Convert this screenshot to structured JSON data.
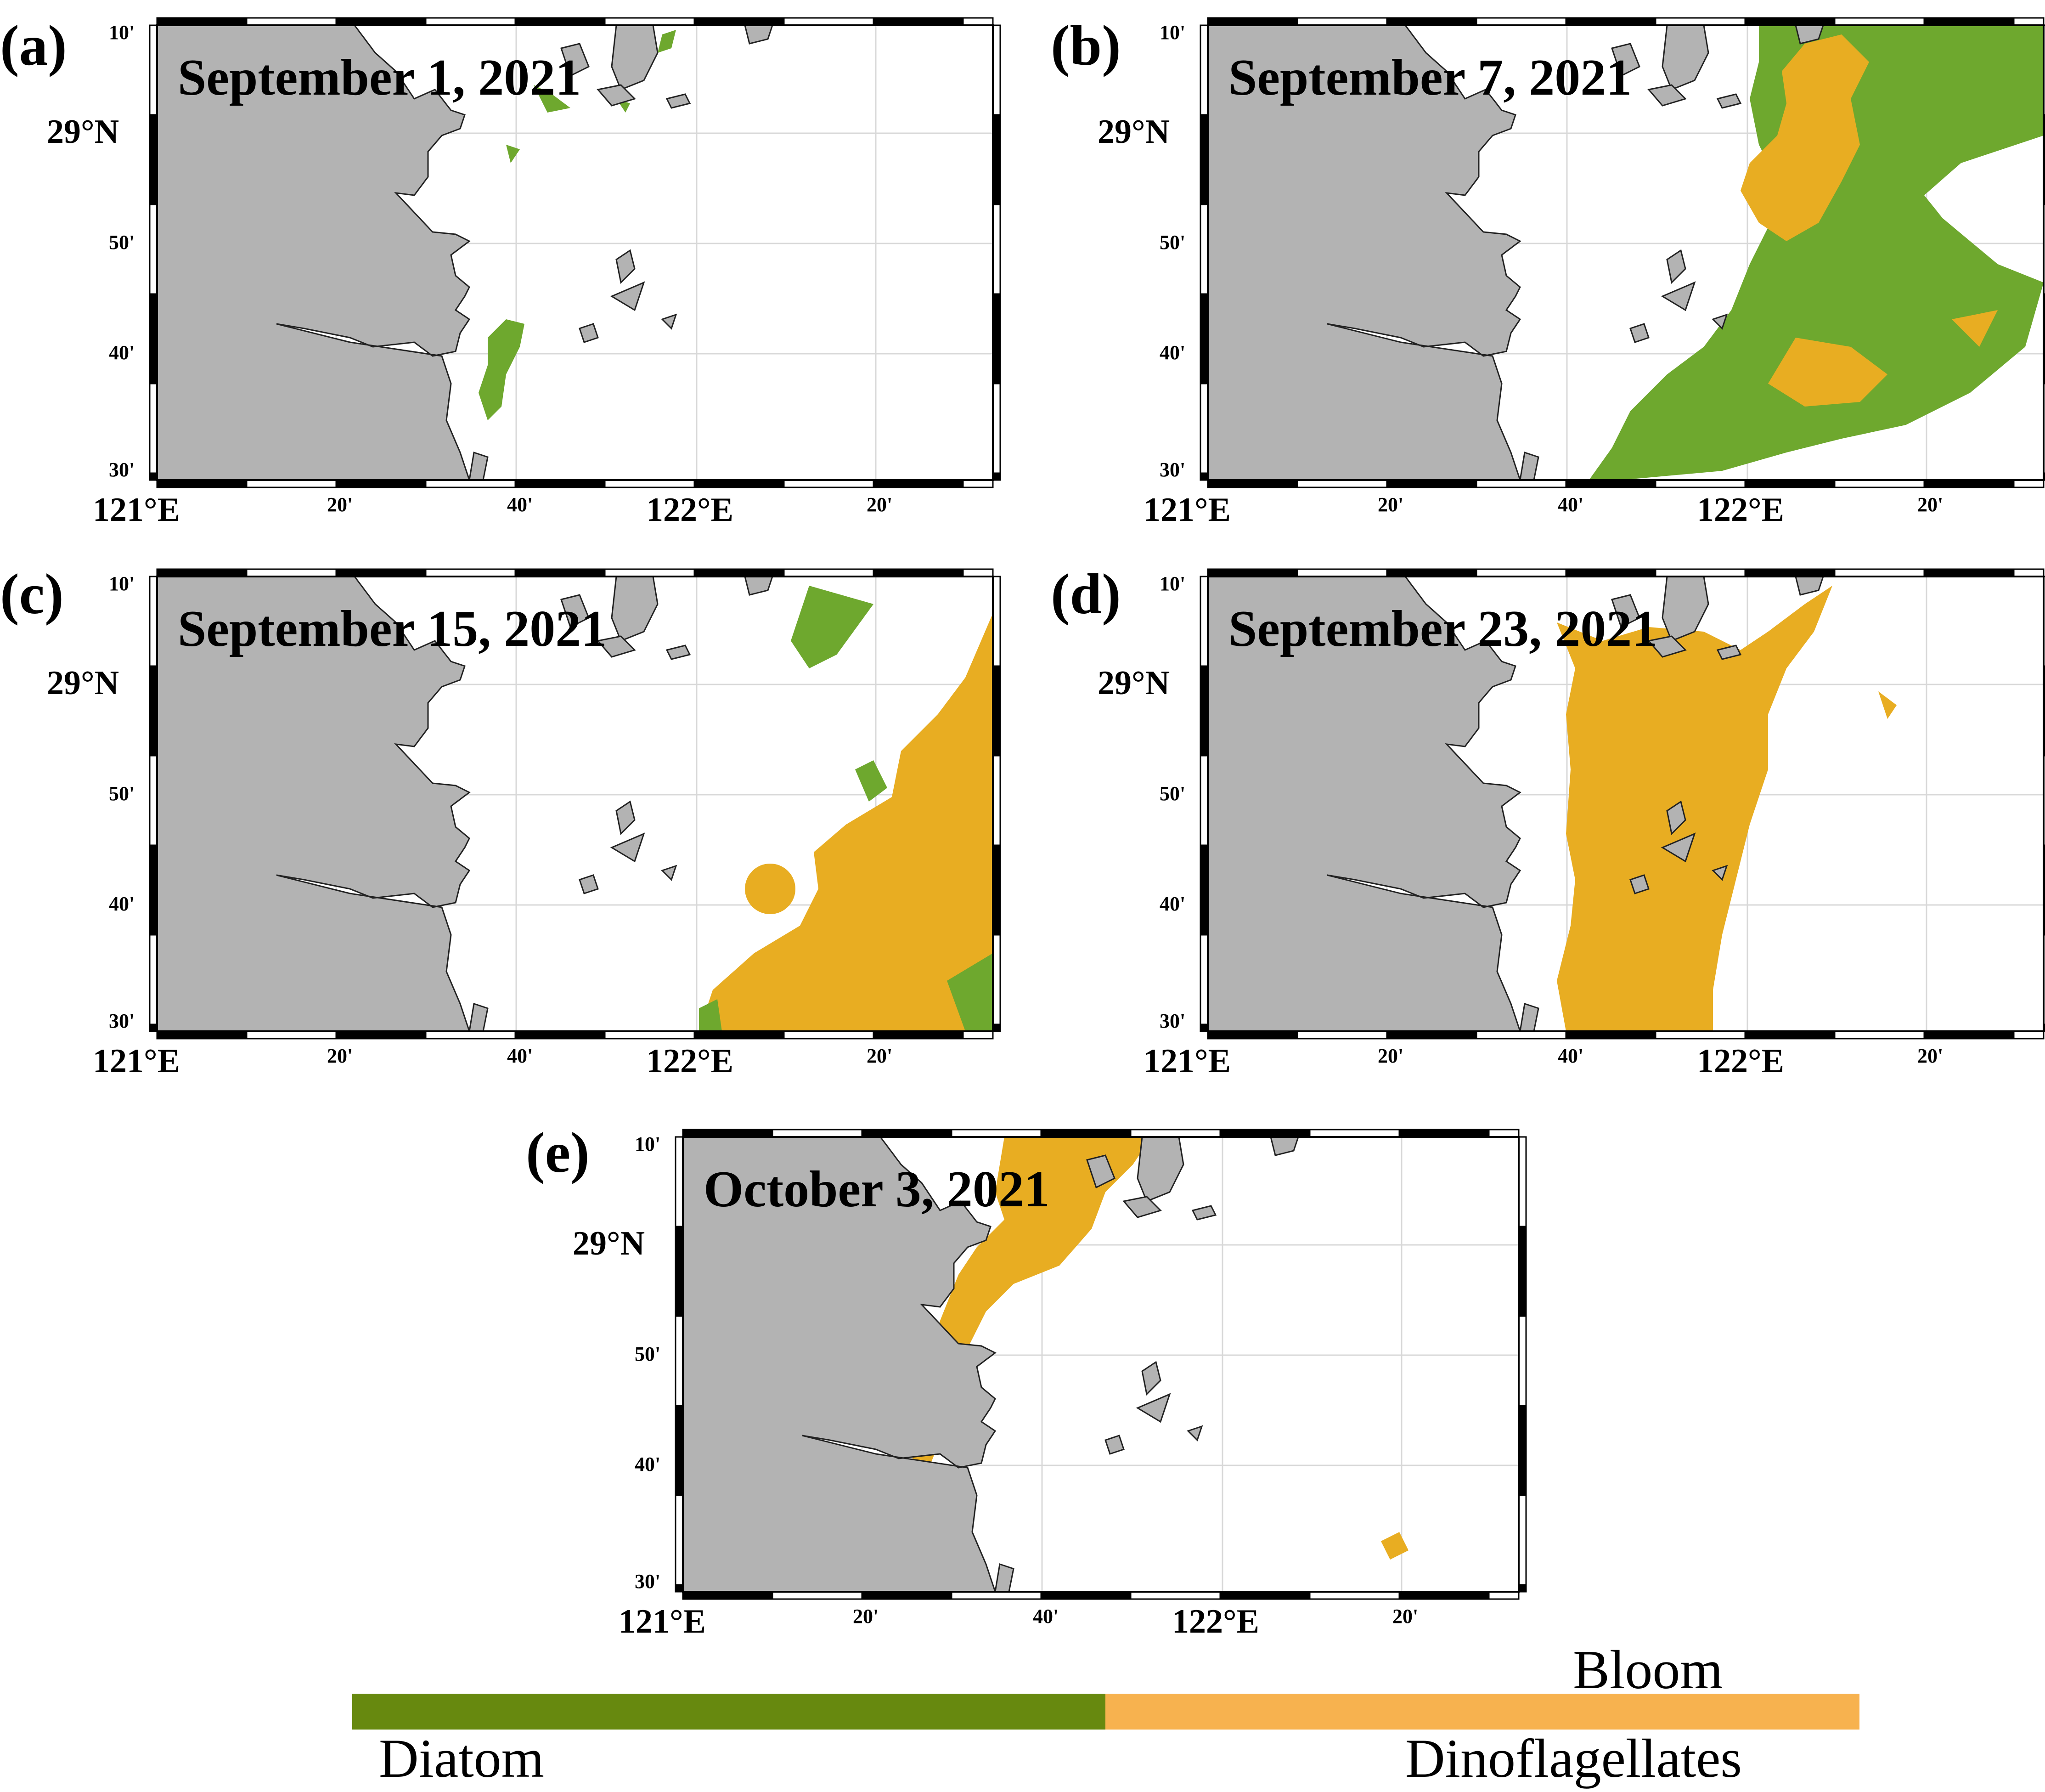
{
  "colors": {
    "land": "#b3b3b3",
    "diatom": "#6ea82e",
    "dinoflagellates": "#e8ad22",
    "legend_diatom": "#67890f",
    "legend_dinoflagellates": "#f7b24f",
    "grid": "#d8d8d8"
  },
  "axes": {
    "longitude_ticks": [
      "121°E",
      "20'",
      "40'",
      "122°E",
      "20'"
    ],
    "latitude_ticks": [
      "10'",
      "29°N",
      "50'",
      "40'",
      "30'"
    ]
  },
  "panels": [
    {
      "letter": "(a)",
      "date": "September 1, 2021"
    },
    {
      "letter": "(b)",
      "date": "September 7, 2021"
    },
    {
      "letter": "(c)",
      "date": "September 15, 2021"
    },
    {
      "letter": "(d)",
      "date": "September 23, 2021"
    },
    {
      "letter": "(e)",
      "date": "October 3, 2021"
    }
  ],
  "legend": {
    "title": "Bloom",
    "diatom_label": "Diatom",
    "dinoflagellates_label": "Dinoflagellates"
  }
}
